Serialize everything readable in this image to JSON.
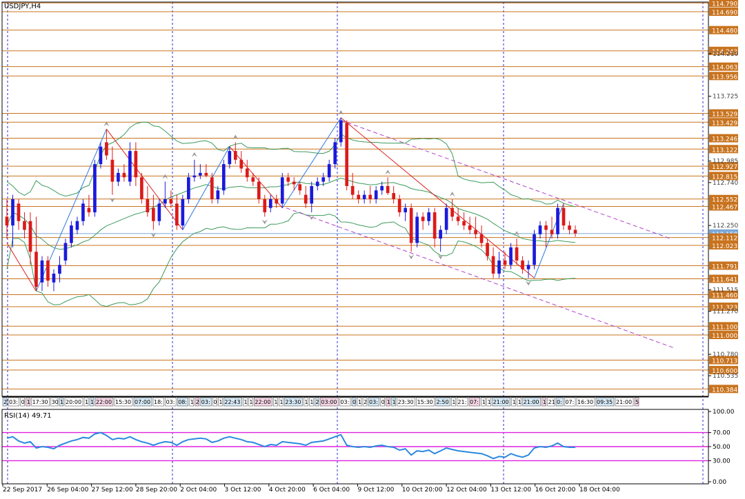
{
  "chart_data": {
    "type": "candlestick",
    "symbol_label": "USDJPY,H4",
    "indicator_label": "RSI(14) 49.71",
    "colors": {
      "bull": "#1a1adc",
      "bear": "#dc1a1a",
      "level": "#c8731e",
      "level_box": "#c8731e",
      "separator": "#2a2ad8",
      "bands": "#3c9a5a",
      "zigzag_up": "#2a78e0",
      "zigzag_down": "#dc2020",
      "channel": "#b040c8",
      "rsi_line": "#2a88e0",
      "rsi_levels": "#e020e0",
      "fractal": "#9a9a9a",
      "current_price": "#7aa8d8"
    },
    "price_axis": {
      "min": 110.3,
      "max": 114.8,
      "ticks": [
        "114.210",
        "113.725",
        "112.985",
        "112.740",
        "112.250",
        "111.515",
        "111.270",
        "110.780",
        "110.535"
      ]
    },
    "levels": [
      "114.790",
      "114.690",
      "114.480",
      "114.243",
      "114.063",
      "113.956",
      "113.529",
      "113.429",
      "113.246",
      "113.122",
      "112.927",
      "112.815",
      "112.552",
      "112.467",
      "112.158",
      "112.112",
      "112.023",
      "111.791",
      "111.641",
      "111.460",
      "111.323",
      "111.100",
      "111.000",
      "110.713",
      "110.600",
      "110.384"
    ],
    "current_price": "112.158",
    "time_labels": [
      "22 Sep 2017",
      "26 Sep 04:00",
      "27 Sep 12:00",
      "28 Sep 20:00",
      "2 Oct 04:00",
      "3 Oct 12:00",
      "4 Oct 20:00",
      "6 Oct 04:00",
      "9 Oct 12:00",
      "10 Oct 20:00",
      "12 Oct 04:00",
      "13 Oct 12:00",
      "16 Oct 20:00",
      "18 Oct 04:00"
    ],
    "session_labels": [
      "2",
      "03:",
      "0",
      "1",
      "17:30",
      "30",
      "1",
      "20:00",
      "1",
      "1",
      "22:00",
      "15:30",
      "07:00",
      "18:",
      "03:",
      "08:",
      "1",
      "2",
      "03:",
      "0",
      "1",
      "22:43",
      "1",
      "1",
      "22:00",
      "1",
      "1",
      "23:30",
      "1",
      "1",
      "2",
      "03:00",
      "03:",
      "0",
      "1",
      "2",
      "03:",
      "0",
      "1",
      "1",
      "23:30",
      "15:30",
      "2:50",
      "1",
      "21:",
      "07:",
      "1",
      "1",
      "21:00",
      "1",
      "1",
      "21:00",
      "1",
      "21",
      "0:",
      "07:",
      "16:30",
      "09:35",
      "21:00",
      "5"
    ],
    "candles": [
      [
        112.35,
        112.55,
        112.1,
        112.25
      ],
      [
        112.25,
        112.6,
        112.0,
        112.55
      ],
      [
        112.5,
        112.55,
        112.2,
        112.3
      ],
      [
        112.3,
        112.4,
        112.1,
        112.2
      ],
      [
        112.3,
        112.4,
        111.8,
        111.95
      ],
      [
        111.95,
        112.35,
        111.5,
        111.55
      ],
      [
        111.6,
        111.9,
        111.5,
        111.85
      ],
      [
        111.85,
        111.9,
        111.55,
        111.62
      ],
      [
        111.6,
        111.75,
        111.5,
        111.7
      ],
      [
        111.7,
        111.9,
        111.6,
        111.8
      ],
      [
        111.85,
        112.1,
        111.8,
        112.05
      ],
      [
        112.05,
        112.3,
        112.0,
        112.25
      ],
      [
        112.2,
        112.35,
        112.15,
        112.3
      ],
      [
        112.3,
        112.55,
        112.25,
        112.5
      ],
      [
        112.45,
        112.6,
        112.35,
        112.4
      ],
      [
        112.4,
        113.0,
        112.35,
        112.95
      ],
      [
        112.95,
        113.2,
        112.9,
        113.15
      ],
      [
        113.2,
        113.35,
        113.0,
        113.05
      ],
      [
        113.0,
        113.15,
        112.6,
        112.75
      ],
      [
        112.75,
        112.9,
        112.7,
        112.85
      ],
      [
        112.85,
        112.95,
        112.75,
        112.8
      ],
      [
        112.75,
        113.2,
        112.7,
        113.1
      ],
      [
        113.1,
        113.2,
        112.7,
        112.8
      ],
      [
        112.8,
        112.85,
        112.5,
        112.55
      ],
      [
        112.55,
        112.7,
        112.35,
        112.4
      ],
      [
        112.45,
        112.6,
        112.2,
        112.3
      ],
      [
        112.3,
        112.55,
        112.25,
        112.5
      ],
      [
        112.5,
        112.75,
        112.45,
        112.55
      ],
      [
        112.55,
        112.65,
        112.45,
        112.5
      ],
      [
        112.5,
        112.6,
        112.2,
        112.25
      ],
      [
        112.25,
        112.6,
        112.2,
        112.55
      ],
      [
        112.55,
        112.85,
        112.5,
        112.8
      ],
      [
        112.8,
        113.0,
        112.75,
        112.82
      ],
      [
        112.82,
        112.95,
        112.78,
        112.85
      ],
      [
        112.85,
        112.95,
        112.8,
        112.82
      ],
      [
        112.8,
        112.85,
        112.5,
        112.55
      ],
      [
        112.55,
        112.7,
        112.5,
        112.65
      ],
      [
        112.65,
        113.0,
        112.6,
        112.95
      ],
      [
        112.95,
        113.15,
        112.9,
        113.1
      ],
      [
        113.1,
        113.2,
        112.95,
        113.0
      ],
      [
        113.0,
        113.1,
        112.85,
        112.9
      ],
      [
        112.9,
        113.0,
        112.75,
        112.8
      ],
      [
        112.8,
        112.85,
        112.7,
        112.75
      ],
      [
        112.75,
        112.8,
        112.5,
        112.55
      ],
      [
        112.55,
        112.6,
        112.35,
        112.4
      ],
      [
        112.45,
        112.6,
        112.4,
        112.55
      ],
      [
        112.55,
        112.6,
        112.45,
        112.5
      ],
      [
        112.5,
        112.85,
        112.45,
        112.8
      ],
      [
        112.8,
        112.85,
        112.7,
        112.75
      ],
      [
        112.75,
        112.8,
        112.65,
        112.72
      ],
      [
        112.72,
        112.75,
        112.6,
        112.65
      ],
      [
        112.6,
        112.7,
        112.45,
        112.5
      ],
      [
        112.5,
        112.75,
        112.4,
        112.7
      ],
      [
        112.7,
        112.8,
        112.65,
        112.75
      ],
      [
        112.75,
        112.85,
        112.7,
        112.8
      ],
      [
        112.8,
        113.0,
        112.75,
        112.95
      ],
      [
        112.95,
        113.25,
        112.9,
        113.2
      ],
      [
        113.2,
        113.48,
        113.15,
        113.45
      ],
      [
        113.42,
        113.45,
        112.65,
        112.7
      ],
      [
        112.7,
        112.85,
        112.55,
        112.6
      ],
      [
        112.6,
        112.65,
        112.5,
        112.55
      ],
      [
        112.55,
        112.65,
        112.5,
        112.6
      ],
      [
        112.6,
        112.7,
        112.5,
        112.55
      ],
      [
        112.55,
        112.7,
        112.5,
        112.65
      ],
      [
        112.65,
        112.75,
        112.6,
        112.7
      ],
      [
        112.7,
        112.8,
        112.6,
        112.62
      ],
      [
        112.62,
        112.7,
        112.5,
        112.55
      ],
      [
        112.55,
        112.6,
        112.35,
        112.4
      ],
      [
        112.4,
        112.5,
        112.3,
        112.45
      ],
      [
        112.45,
        112.5,
        111.95,
        112.05
      ],
      [
        112.05,
        112.4,
        112.0,
        112.35
      ],
      [
        112.35,
        112.4,
        112.2,
        112.3
      ],
      [
        112.3,
        112.45,
        112.25,
        112.4
      ],
      [
        112.4,
        112.45,
        112.0,
        112.1
      ],
      [
        112.1,
        112.25,
        111.95,
        112.2
      ],
      [
        112.2,
        112.5,
        112.15,
        112.45
      ],
      [
        112.45,
        112.55,
        112.3,
        112.35
      ],
      [
        112.35,
        112.45,
        112.25,
        112.3
      ],
      [
        112.3,
        112.4,
        112.2,
        112.25
      ],
      [
        112.25,
        112.35,
        112.15,
        112.2
      ],
      [
        112.2,
        112.35,
        112.1,
        112.15
      ],
      [
        112.15,
        112.25,
        112.0,
        112.05
      ],
      [
        112.05,
        112.1,
        111.85,
        111.9
      ],
      [
        111.9,
        112.0,
        111.65,
        111.7
      ],
      [
        111.7,
        111.95,
        111.65,
        111.85
      ],
      [
        111.85,
        111.95,
        111.75,
        111.8
      ],
      [
        111.8,
        112.05,
        111.75,
        112.0
      ],
      [
        112.0,
        112.1,
        111.8,
        111.85
      ],
      [
        111.85,
        111.9,
        111.7,
        111.75
      ],
      [
        111.75,
        111.85,
        111.65,
        111.8
      ],
      [
        111.8,
        112.2,
        111.75,
        112.15
      ],
      [
        112.15,
        112.3,
        112.1,
        112.25
      ],
      [
        112.25,
        112.3,
        112.0,
        112.2
      ],
      [
        112.2,
        112.35,
        112.1,
        112.15
      ],
      [
        112.15,
        112.5,
        112.1,
        112.45
      ],
      [
        112.45,
        112.5,
        112.2,
        112.25
      ],
      [
        112.25,
        112.3,
        112.15,
        112.2
      ],
      [
        112.2,
        112.25,
        112.12,
        112.16
      ]
    ],
    "rsi": {
      "min": 0,
      "max": 100,
      "levels": [
        70,
        50,
        30
      ],
      "ticks": [
        "100.00",
        "70.00",
        "50.00",
        "30.00",
        "0.00"
      ],
      "values": [
        62,
        64,
        58,
        55,
        57,
        48,
        50,
        49,
        47,
        52,
        55,
        58,
        60,
        63,
        62,
        68,
        70,
        66,
        60,
        62,
        61,
        64,
        60,
        57,
        55,
        52,
        55,
        57,
        56,
        52,
        57,
        60,
        61,
        62,
        61,
        56,
        58,
        62,
        64,
        62,
        60,
        57,
        56,
        53,
        50,
        53,
        52,
        57,
        56,
        55,
        54,
        52,
        56,
        57,
        58,
        61,
        64,
        67,
        52,
        50,
        49,
        50,
        49,
        51,
        52,
        50,
        49,
        45,
        47,
        38,
        44,
        43,
        45,
        40,
        44,
        48,
        46,
        44,
        43,
        42,
        41,
        40,
        37,
        33,
        36,
        35,
        40,
        37,
        35,
        38,
        48,
        50,
        49,
        51,
        55,
        50,
        49,
        49
      ]
    }
  }
}
